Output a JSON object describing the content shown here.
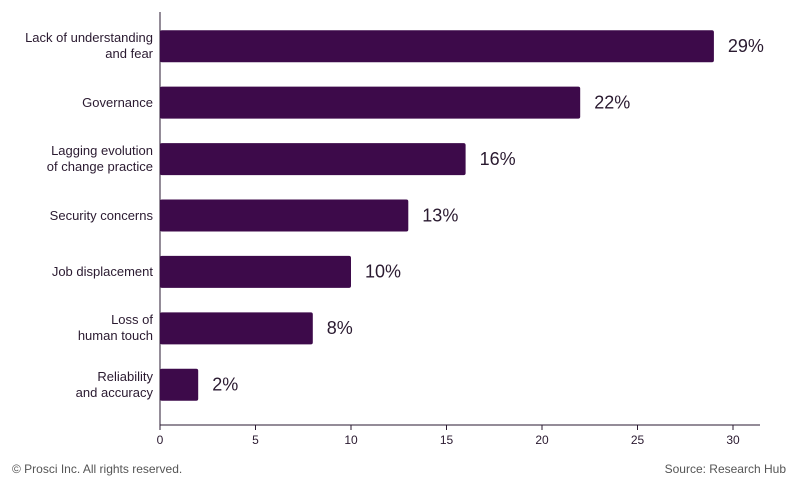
{
  "chart_data": {
    "type": "bar",
    "orientation": "horizontal",
    "categories": [
      "Lack of understanding\nand fear",
      "Governance",
      "Lagging evolution\nof change practice",
      "Security concerns",
      "Job displacement",
      "Loss of\nhuman touch",
      "Reliability\nand accuracy"
    ],
    "values": [
      29,
      22,
      16,
      13,
      10,
      8,
      2
    ],
    "value_labels": [
      "29%",
      "22%",
      "16%",
      "13%",
      "10%",
      "8%",
      "2%"
    ],
    "color": "#3d0a4a",
    "xlim": [
      0,
      30
    ],
    "xticks": [
      0,
      5,
      10,
      15,
      20,
      25,
      30
    ],
    "footer_left": "© Prosci Inc. All rights reserved.",
    "footer_right": "Source: Research Hub"
  }
}
